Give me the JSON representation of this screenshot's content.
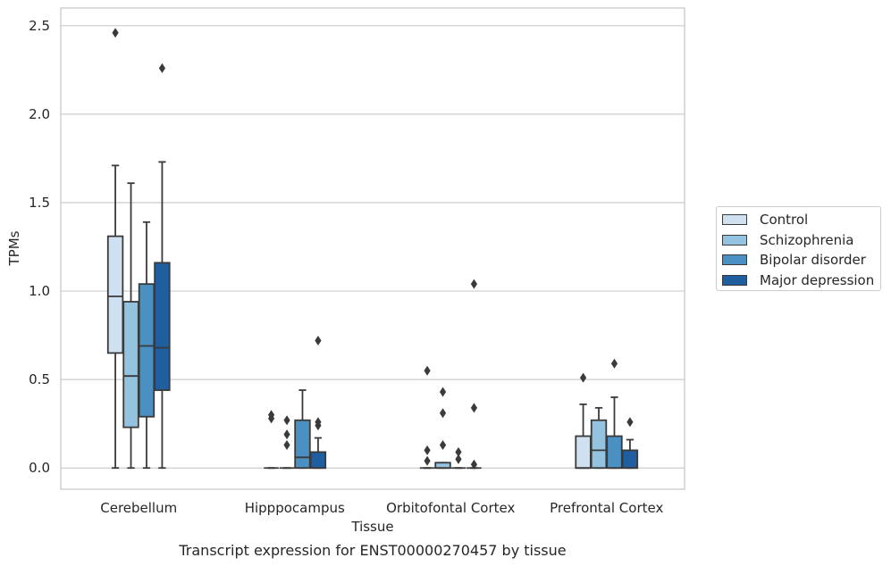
{
  "chart_data": {
    "type": "box",
    "title": "Transcript expression for ENST00000270457 by tissue",
    "xlabel": "Tissue",
    "ylabel": "TPMs",
    "ylim": [
      -0.12,
      2.6
    ],
    "yticks": [
      "0.0",
      "0.5",
      "1.0",
      "1.5",
      "2.0",
      "2.5"
    ],
    "categories": [
      "Cerebellum",
      "Hipppocampus",
      "Orbitofontal Cortex",
      "Prefrontal Cortex"
    ],
    "grid": "horizontal",
    "legend_position": "right",
    "series": [
      {
        "name": "Control",
        "color": "#cfe0f1",
        "boxes": [
          {
            "whislo": 0.0,
            "q1": 0.65,
            "med": 0.97,
            "q3": 1.31,
            "whishi": 1.71,
            "fliers": [
              2.46
            ]
          },
          {
            "whislo": 0.0,
            "q1": 0.0,
            "med": 0.0,
            "q3": 0.0,
            "whishi": 0.0,
            "fliers": [
              0.3,
              0.28
            ]
          },
          {
            "whislo": 0.0,
            "q1": 0.0,
            "med": 0.0,
            "q3": 0.0,
            "whishi": 0.0,
            "fliers": [
              0.55,
              0.1,
              0.04
            ]
          },
          {
            "whislo": 0.0,
            "q1": 0.0,
            "med": 0.0,
            "q3": 0.18,
            "whishi": 0.36,
            "fliers": [
              0.51
            ]
          }
        ]
      },
      {
        "name": "Schizophrenia",
        "color": "#94c3df",
        "boxes": [
          {
            "whislo": 0.0,
            "q1": 0.23,
            "med": 0.52,
            "q3": 0.94,
            "whishi": 1.61,
            "fliers": []
          },
          {
            "whislo": 0.0,
            "q1": 0.0,
            "med": 0.0,
            "q3": 0.0,
            "whishi": 0.0,
            "fliers": [
              0.27,
              0.19,
              0.13
            ]
          },
          {
            "whislo": 0.0,
            "q1": 0.0,
            "med": 0.0,
            "q3": 0.03,
            "whishi": 0.03,
            "fliers": [
              0.43,
              0.31,
              0.13
            ]
          },
          {
            "whislo": 0.0,
            "q1": 0.0,
            "med": 0.1,
            "q3": 0.27,
            "whishi": 0.34,
            "fliers": []
          }
        ]
      },
      {
        "name": "Bipolar disorder",
        "color": "#4a90c2",
        "boxes": [
          {
            "whislo": 0.0,
            "q1": 0.29,
            "med": 0.69,
            "q3": 1.04,
            "whishi": 1.39,
            "fliers": []
          },
          {
            "whislo": 0.0,
            "q1": 0.0,
            "med": 0.06,
            "q3": 0.27,
            "whishi": 0.44,
            "fliers": []
          },
          {
            "whislo": 0.0,
            "q1": 0.0,
            "med": 0.0,
            "q3": 0.0,
            "whishi": 0.0,
            "fliers": [
              0.09,
              0.05
            ]
          },
          {
            "whislo": 0.0,
            "q1": 0.0,
            "med": 0.0,
            "q3": 0.18,
            "whishi": 0.4,
            "fliers": [
              0.59
            ]
          }
        ]
      },
      {
        "name": "Major depression",
        "color": "#1f5f9f",
        "boxes": [
          {
            "whislo": 0.0,
            "q1": 0.44,
            "med": 0.68,
            "q3": 1.16,
            "whishi": 1.73,
            "fliers": [
              2.26
            ]
          },
          {
            "whislo": 0.0,
            "q1": 0.0,
            "med": 0.0,
            "q3": 0.09,
            "whishi": 0.17,
            "fliers": [
              0.72,
              0.26,
              0.24
            ]
          },
          {
            "whislo": 0.0,
            "q1": 0.0,
            "med": 0.0,
            "q3": 0.0,
            "whishi": 0.0,
            "fliers": [
              1.04,
              0.34,
              0.02
            ]
          },
          {
            "whislo": 0.0,
            "q1": 0.0,
            "med": 0.0,
            "q3": 0.1,
            "whishi": 0.16,
            "fliers": [
              0.26
            ]
          }
        ]
      }
    ]
  }
}
